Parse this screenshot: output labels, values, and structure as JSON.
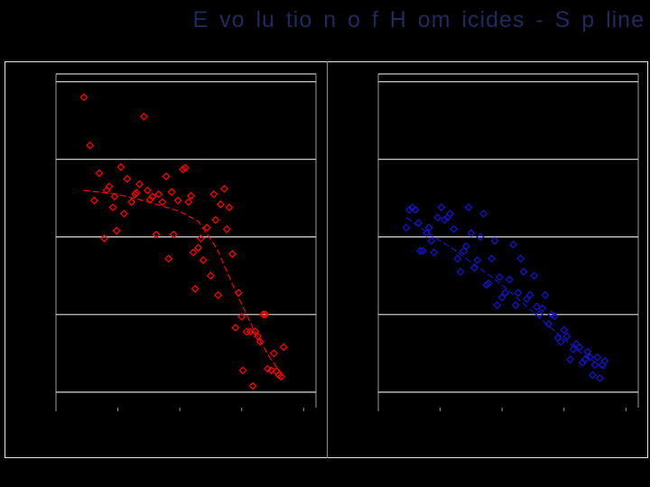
{
  "title": "E vo lu tio n o f H om icides - S p line",
  "chart_data": [
    {
      "type": "scatter",
      "title": "",
      "xlabel": "",
      "ylabel": "",
      "xlim": [
        0,
        4.2
      ],
      "ylim": [
        -0.2,
        4.1
      ],
      "grid": true,
      "xticks": [
        0,
        1,
        2,
        3,
        4
      ],
      "yticks": [
        0,
        1,
        2,
        3,
        4
      ],
      "colors": {
        "marker": "#ff0000",
        "line": "#ff0000"
      },
      "series": [
        {
          "kind": "points",
          "values": [
            [
              0.45,
              3.8
            ],
            [
              0.55,
              3.18
            ],
            [
              0.62,
              2.47
            ],
            [
              0.7,
              2.82
            ],
            [
              0.78,
              1.98
            ],
            [
              0.82,
              2.6
            ],
            [
              0.86,
              2.65
            ],
            [
              0.92,
              2.38
            ],
            [
              0.95,
              2.52
            ],
            [
              0.98,
              2.08
            ],
            [
              1.05,
              2.9
            ],
            [
              1.1,
              2.3
            ],
            [
              1.15,
              2.75
            ],
            [
              1.22,
              2.45
            ],
            [
              1.28,
              2.55
            ],
            [
              1.3,
              2.57
            ],
            [
              1.35,
              2.68
            ],
            [
              1.42,
              3.55
            ],
            [
              1.48,
              2.6
            ],
            [
              1.52,
              2.48
            ],
            [
              1.56,
              2.52
            ],
            [
              1.62,
              2.03
            ],
            [
              1.66,
              2.55
            ],
            [
              1.72,
              2.45
            ],
            [
              1.78,
              2.78
            ],
            [
              1.82,
              1.72
            ],
            [
              1.87,
              2.58
            ],
            [
              1.9,
              2.03
            ],
            [
              1.97,
              2.47
            ],
            [
              2.05,
              2.87
            ],
            [
              2.09,
              2.89
            ],
            [
              2.14,
              2.45
            ],
            [
              2.18,
              2.53
            ],
            [
              2.22,
              1.8
            ],
            [
              2.25,
              1.33
            ],
            [
              2.3,
              1.86
            ],
            [
              2.34,
              1.98
            ],
            [
              2.38,
              1.7
            ],
            [
              2.44,
              2.12
            ],
            [
              2.5,
              1.5
            ],
            [
              2.55,
              2.55
            ],
            [
              2.58,
              2.22
            ],
            [
              2.62,
              1.25
            ],
            [
              2.66,
              2.42
            ],
            [
              2.72,
              2.62
            ],
            [
              2.76,
              2.1
            ],
            [
              2.8,
              2.38
            ],
            [
              2.85,
              1.78
            ],
            [
              2.9,
              0.83
            ],
            [
              2.95,
              1.28
            ],
            [
              3.0,
              0.97
            ],
            [
              3.02,
              0.28
            ],
            [
              3.08,
              0.78
            ],
            [
              3.14,
              0.78
            ],
            [
              3.18,
              0.08
            ],
            [
              3.22,
              0.78
            ],
            [
              3.26,
              0.72
            ],
            [
              3.3,
              0.65
            ],
            [
              3.35,
              1.0
            ],
            [
              3.38,
              1.0
            ],
            [
              3.42,
              0.3
            ],
            [
              3.48,
              0.28
            ],
            [
              3.52,
              0.5
            ],
            [
              3.56,
              0.27
            ],
            [
              3.6,
              0.22
            ],
            [
              3.64,
              0.2
            ],
            [
              3.68,
              0.58
            ]
          ]
        },
        {
          "kind": "spline",
          "values": [
            [
              0.45,
              2.6
            ],
            [
              1.0,
              2.55
            ],
            [
              1.5,
              2.45
            ],
            [
              2.0,
              2.33
            ],
            [
              2.3,
              2.2
            ],
            [
              2.6,
              1.85
            ],
            [
              2.9,
              1.3
            ],
            [
              3.2,
              0.8
            ],
            [
              3.45,
              0.45
            ],
            [
              3.68,
              0.2
            ]
          ]
        }
      ]
    },
    {
      "type": "scatter",
      "title": "",
      "xlabel": "",
      "ylabel": "",
      "xlim": [
        0,
        4.2
      ],
      "ylim": [
        -0.2,
        4.1
      ],
      "grid": true,
      "xticks": [
        0,
        1,
        2,
        3,
        4
      ],
      "yticks": [
        0,
        1,
        2,
        3,
        4
      ],
      "colors": {
        "marker": "#1414cc",
        "line": "#1414cc"
      },
      "series": [
        {
          "kind": "points",
          "values": [
            [
              0.45,
              2.12
            ],
            [
              0.5,
              2.35
            ],
            [
              0.55,
              2.38
            ],
            [
              0.6,
              2.35
            ],
            [
              0.65,
              2.18
            ],
            [
              0.68,
              1.82
            ],
            [
              0.72,
              1.82
            ],
            [
              0.78,
              2.05
            ],
            [
              0.82,
              2.12
            ],
            [
              0.86,
              1.95
            ],
            [
              0.9,
              1.8
            ],
            [
              0.96,
              2.25
            ],
            [
              1.02,
              2.38
            ],
            [
              1.07,
              2.22
            ],
            [
              1.12,
              2.25
            ],
            [
              1.16,
              2.3
            ],
            [
              1.22,
              2.1
            ],
            [
              1.28,
              1.72
            ],
            [
              1.33,
              1.55
            ],
            [
              1.38,
              1.82
            ],
            [
              1.42,
              1.88
            ],
            [
              1.46,
              2.38
            ],
            [
              1.5,
              2.05
            ],
            [
              1.55,
              1.6
            ],
            [
              1.6,
              1.7
            ],
            [
              1.65,
              2.0
            ],
            [
              1.7,
              2.3
            ],
            [
              1.75,
              1.38
            ],
            [
              1.78,
              1.4
            ],
            [
              1.83,
              1.72
            ],
            [
              1.88,
              1.95
            ],
            [
              1.92,
              1.12
            ],
            [
              1.96,
              1.48
            ],
            [
              2.0,
              1.22
            ],
            [
              2.05,
              1.28
            ],
            [
              2.12,
              1.45
            ],
            [
              2.18,
              1.9
            ],
            [
              2.22,
              1.12
            ],
            [
              2.26,
              1.28
            ],
            [
              2.3,
              1.72
            ],
            [
              2.35,
              1.55
            ],
            [
              2.4,
              1.2
            ],
            [
              2.45,
              1.25
            ],
            [
              2.52,
              1.5
            ],
            [
              2.56,
              1.1
            ],
            [
              2.6,
              1.0
            ],
            [
              2.65,
              1.08
            ],
            [
              2.7,
              1.25
            ],
            [
              2.75,
              0.88
            ],
            [
              2.8,
              1.0
            ],
            [
              2.85,
              0.98
            ],
            [
              2.9,
              0.7
            ],
            [
              2.95,
              0.65
            ],
            [
              3.0,
              0.8
            ],
            [
              3.05,
              0.72
            ],
            [
              3.1,
              0.42
            ],
            [
              3.15,
              0.55
            ],
            [
              3.2,
              0.62
            ],
            [
              3.25,
              0.58
            ],
            [
              3.3,
              0.38
            ],
            [
              3.34,
              0.42
            ],
            [
              3.38,
              0.52
            ],
            [
              3.42,
              0.45
            ],
            [
              3.46,
              0.22
            ],
            [
              3.5,
              0.35
            ],
            [
              3.54,
              0.45
            ],
            [
              3.58,
              0.18
            ],
            [
              3.62,
              0.35
            ],
            [
              3.66,
              0.4
            ]
          ]
        },
        {
          "kind": "spline",
          "values": [
            [
              0.45,
              2.25
            ],
            [
              0.8,
              2.05
            ],
            [
              1.2,
              1.85
            ],
            [
              1.6,
              1.62
            ],
            [
              2.0,
              1.38
            ],
            [
              2.4,
              1.1
            ],
            [
              2.8,
              0.82
            ],
            [
              3.2,
              0.55
            ],
            [
              3.66,
              0.3
            ]
          ]
        }
      ]
    }
  ]
}
